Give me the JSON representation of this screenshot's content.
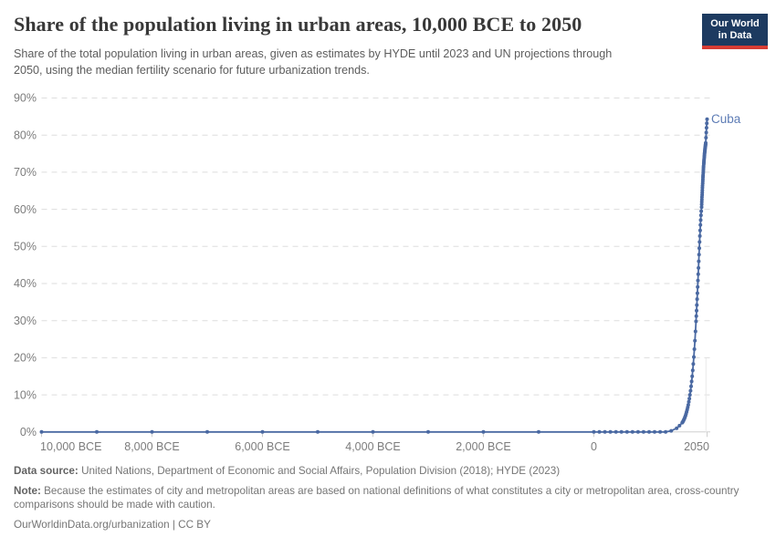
{
  "header": {
    "title": "Share of the population living in urban areas, 10,000 BCE to 2050",
    "subtitle": "Share of the total population living in urban areas, given as estimates by HYDE until 2023 and UN projections through 2050, using the median fertility scenario for future urbanization trends.",
    "logo": {
      "line1": "Our World",
      "line2": "in Data",
      "bg_color": "#1d3a60",
      "bar_color": "#d73c34"
    }
  },
  "chart_data": {
    "type": "line",
    "title": "Share of the population living in urban areas, 10,000 BCE to 2050",
    "x_domain": [
      -10000,
      2050
    ],
    "y_domain": [
      0,
      90
    ],
    "grid": "dashed-horizontal",
    "legend": "entity-label-at-line-end",
    "x_ticks": [
      {
        "v": -10000,
        "label": "10,000 BCE"
      },
      {
        "v": -8000,
        "label": "8,000 BCE"
      },
      {
        "v": -6000,
        "label": "6,000 BCE"
      },
      {
        "v": -4000,
        "label": "4,000 BCE"
      },
      {
        "v": -2000,
        "label": "2,000 BCE"
      },
      {
        "v": 0,
        "label": "0"
      },
      {
        "v": 2050,
        "label": "2050"
      }
    ],
    "y_ticks": [
      {
        "v": 0,
        "label": "0%"
      },
      {
        "v": 10,
        "label": "10%"
      },
      {
        "v": 20,
        "label": "20%"
      },
      {
        "v": 30,
        "label": "30%"
      },
      {
        "v": 40,
        "label": "40%"
      },
      {
        "v": 50,
        "label": "50%"
      },
      {
        "v": 60,
        "label": "60%"
      },
      {
        "v": 70,
        "label": "70%"
      },
      {
        "v": 80,
        "label": "80%"
      },
      {
        "v": 90,
        "label": "90%"
      }
    ],
    "series": [
      {
        "name": "Cuba",
        "color": "#4a69a2",
        "label_color": "#5d7cb5",
        "points": [
          [
            -10000,
            0
          ],
          [
            -9000,
            0
          ],
          [
            -8000,
            0
          ],
          [
            -7000,
            0
          ],
          [
            -6000,
            0
          ],
          [
            -5000,
            0
          ],
          [
            -4000,
            0
          ],
          [
            -3000,
            0
          ],
          [
            -2000,
            0
          ],
          [
            -1000,
            0
          ],
          [
            0,
            0
          ],
          [
            100,
            0
          ],
          [
            200,
            0
          ],
          [
            300,
            0
          ],
          [
            400,
            0
          ],
          [
            500,
            0
          ],
          [
            600,
            0
          ],
          [
            700,
            0
          ],
          [
            800,
            0
          ],
          [
            900,
            0
          ],
          [
            1000,
            0
          ],
          [
            1100,
            0
          ],
          [
            1200,
            0
          ],
          [
            1300,
            0
          ],
          [
            1400,
            0.3
          ],
          [
            1500,
            1.0
          ],
          [
            1550,
            1.7
          ],
          [
            1600,
            2.5
          ],
          [
            1610,
            2.7
          ],
          [
            1620,
            3.0
          ],
          [
            1630,
            3.3
          ],
          [
            1640,
            3.6
          ],
          [
            1650,
            4.0
          ],
          [
            1660,
            4.4
          ],
          [
            1670,
            4.9
          ],
          [
            1680,
            5.4
          ],
          [
            1690,
            6.0
          ],
          [
            1700,
            6.6
          ],
          [
            1710,
            7.3
          ],
          [
            1720,
            8.1
          ],
          [
            1730,
            9.0
          ],
          [
            1740,
            10.0
          ],
          [
            1750,
            11.1
          ],
          [
            1760,
            12.3
          ],
          [
            1770,
            13.6
          ],
          [
            1780,
            15.0
          ],
          [
            1790,
            16.6
          ],
          [
            1800,
            18.3
          ],
          [
            1810,
            20.2
          ],
          [
            1820,
            22.3
          ],
          [
            1830,
            24.6
          ],
          [
            1840,
            27.1
          ],
          [
            1850,
            29.8
          ],
          [
            1855,
            31.2
          ],
          [
            1860,
            32.7
          ],
          [
            1865,
            34.2
          ],
          [
            1870,
            35.8
          ],
          [
            1875,
            37.4
          ],
          [
            1880,
            39.1
          ],
          [
            1885,
            40.8
          ],
          [
            1890,
            42.5
          ],
          [
            1895,
            44.2
          ],
          [
            1900,
            46.0
          ],
          [
            1905,
            47.8
          ],
          [
            1910,
            49.5
          ],
          [
            1915,
            51.2
          ],
          [
            1920,
            52.8
          ],
          [
            1925,
            54.3
          ],
          [
            1930,
            55.8
          ],
          [
            1935,
            57.1
          ],
          [
            1940,
            58.4
          ],
          [
            1945,
            59.5
          ],
          [
            1950,
            60.6
          ],
          [
            1952,
            61.3
          ],
          [
            1954,
            62.0
          ],
          [
            1956,
            62.6
          ],
          [
            1958,
            63.3
          ],
          [
            1960,
            63.9
          ],
          [
            1962,
            64.5
          ],
          [
            1964,
            65.1
          ],
          [
            1966,
            65.8
          ],
          [
            1968,
            66.4
          ],
          [
            1970,
            67.0
          ],
          [
            1972,
            67.6
          ],
          [
            1974,
            68.1
          ],
          [
            1976,
            68.7
          ],
          [
            1978,
            69.2
          ],
          [
            1980,
            69.8
          ],
          [
            1982,
            70.3
          ],
          [
            1984,
            70.8
          ],
          [
            1986,
            71.3
          ],
          [
            1988,
            71.7
          ],
          [
            1990,
            72.2
          ],
          [
            1992,
            72.6
          ],
          [
            1994,
            73.0
          ],
          [
            1996,
            73.4
          ],
          [
            1998,
            73.8
          ],
          [
            2000,
            74.2
          ],
          [
            2002,
            74.5
          ],
          [
            2004,
            74.9
          ],
          [
            2006,
            75.2
          ],
          [
            2008,
            75.5
          ],
          [
            2010,
            75.8
          ],
          [
            2012,
            76.1
          ],
          [
            2014,
            76.4
          ],
          [
            2016,
            76.6
          ],
          [
            2018,
            76.9
          ],
          [
            2020,
            77.1
          ],
          [
            2022,
            77.4
          ],
          [
            2023,
            77.5
          ],
          [
            2025,
            77.9
          ],
          [
            2030,
            79.3
          ],
          [
            2035,
            80.7
          ],
          [
            2040,
            82.0
          ],
          [
            2045,
            83.2
          ],
          [
            2050,
            84.3
          ]
        ]
      }
    ],
    "colors": {
      "gridline": "#dedede",
      "axis": "#cfcfcf",
      "tick_label": "#7c7c7c",
      "divider": "#e9e9e9"
    }
  },
  "footer": {
    "data_source_label": "Data source:",
    "data_source": "United Nations, Department of Economic and Social Affairs, Population Division (2018); HYDE (2023)",
    "note_label": "Note:",
    "note": "Because the estimates of city and metropolitan areas are based on national definitions of what constitutes a city or metropolitan area, cross-country comparisons should be made with caution.",
    "link": "OurWorldinData.org/urbanization",
    "license": "| CC BY"
  }
}
